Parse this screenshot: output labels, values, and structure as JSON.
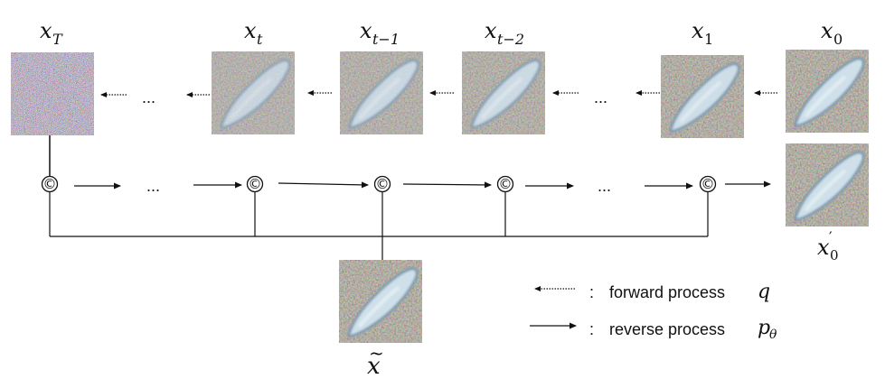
{
  "labels": {
    "xT": {
      "base": "x",
      "sub": "T"
    },
    "xt": {
      "base": "x",
      "sub": "t"
    },
    "xt1": {
      "base": "x",
      "sub": "t−1"
    },
    "xt2": {
      "base": "x",
      "sub": "t−2"
    },
    "x1": {
      "base": "x",
      "sub": "1"
    },
    "x0": {
      "base": "x",
      "sub": "0"
    },
    "x0prime": {
      "base": "x",
      "sub": "0",
      "sup": "′"
    },
    "xtilde": {
      "base": "x",
      "accent": "~"
    }
  },
  "ellipsis": "...",
  "concat_symbol": "©",
  "legend": {
    "colon": ":",
    "forward_text": "forward process",
    "forward_symbol": "q",
    "reverse_text": "reverse process",
    "reverse_symbol": {
      "base": "p",
      "sub": "θ"
    }
  },
  "colors": {
    "ink": "#111111",
    "noise_base": "#8a8a8a",
    "image_bg": "#7d7566",
    "flatworm": "#cfe0ea",
    "flatworm_edge": "#6f93ad"
  }
}
